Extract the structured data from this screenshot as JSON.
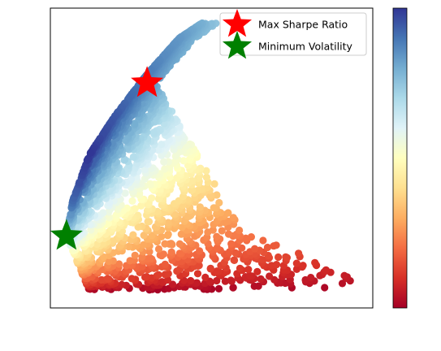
{
  "chart_data": {
    "type": "scatter",
    "title": "",
    "xlabel": "",
    "ylabel": "",
    "xlim": [
      0,
      1
    ],
    "ylim": [
      0,
      1
    ],
    "grid": false,
    "colormap": "RdYlBu",
    "colormap_stops": [
      "#a50026",
      "#d73027",
      "#f46d43",
      "#fdae61",
      "#fee090",
      "#ffffbf",
      "#e0f3f8",
      "#abd9e9",
      "#74add1",
      "#4575b4",
      "#313695"
    ],
    "colorbar": {
      "position": "right",
      "ticks_shown": false
    },
    "point_cloud": {
      "count": 2600,
      "frontier": [
        [
          0.05,
          0.24
        ],
        [
          0.07,
          0.36
        ],
        [
          0.12,
          0.51
        ],
        [
          0.2,
          0.64
        ],
        [
          0.3,
          0.78
        ],
        [
          0.4,
          0.9
        ],
        [
          0.47,
          0.95
        ]
      ],
      "bottom_y": 0.06,
      "bottom_extent_x": [
        0.12,
        0.9
      ],
      "right_tail": [
        [
          0.6,
          0.25
        ],
        [
          0.73,
          0.2
        ],
        [
          0.83,
          0.16
        ],
        [
          0.95,
          0.1
        ]
      ]
    },
    "markers": [
      {
        "name": "Max Sharpe Ratio",
        "x": 0.3,
        "y": 0.75,
        "color": "#ff0000",
        "shape": "star"
      },
      {
        "name": "Minimum Volatility",
        "x": 0.05,
        "y": 0.24,
        "color": "#008000",
        "shape": "star"
      }
    ],
    "legend": {
      "placement": "top-right",
      "entries": [
        {
          "label": "Max Sharpe Ratio",
          "color": "#ff0000",
          "shape": "star"
        },
        {
          "label": "Minimum Volatility",
          "color": "#008000",
          "shape": "star"
        }
      ]
    }
  }
}
